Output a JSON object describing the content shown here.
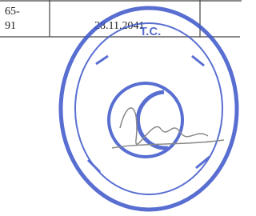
{
  "table": {
    "rows": [
      [
        "65-\n91",
        "28.11.2041"
      ]
    ]
  },
  "stamp": {
    "header": "T.C."
  }
}
